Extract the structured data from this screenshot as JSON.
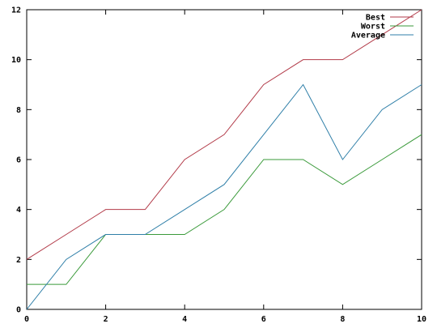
{
  "chart_data": {
    "type": "line",
    "title": "",
    "xlabel": "",
    "ylabel": "",
    "x": [
      0,
      1,
      2,
      3,
      4,
      5,
      6,
      7,
      8,
      9,
      10
    ],
    "xlim": [
      0,
      10
    ],
    "ylim": [
      0,
      12
    ],
    "xticks": [
      0,
      2,
      4,
      6,
      8,
      10
    ],
    "yticks": [
      0,
      2,
      4,
      6,
      8,
      10,
      12
    ],
    "grid": false,
    "legend_position": "top-right",
    "series": [
      {
        "name": "Best",
        "color": "#b23a48",
        "values": [
          2,
          3,
          4,
          4,
          6,
          7,
          9,
          10,
          10,
          11,
          12
        ]
      },
      {
        "name": "Worst",
        "color": "#3a9a3a",
        "values": [
          1,
          1,
          3,
          3,
          3,
          4,
          6,
          6,
          5,
          6,
          7
        ]
      },
      {
        "name": "Average",
        "color": "#2f7fa8",
        "values": [
          0,
          2,
          3,
          3,
          4,
          5,
          7,
          9,
          6,
          8,
          9
        ]
      }
    ]
  }
}
